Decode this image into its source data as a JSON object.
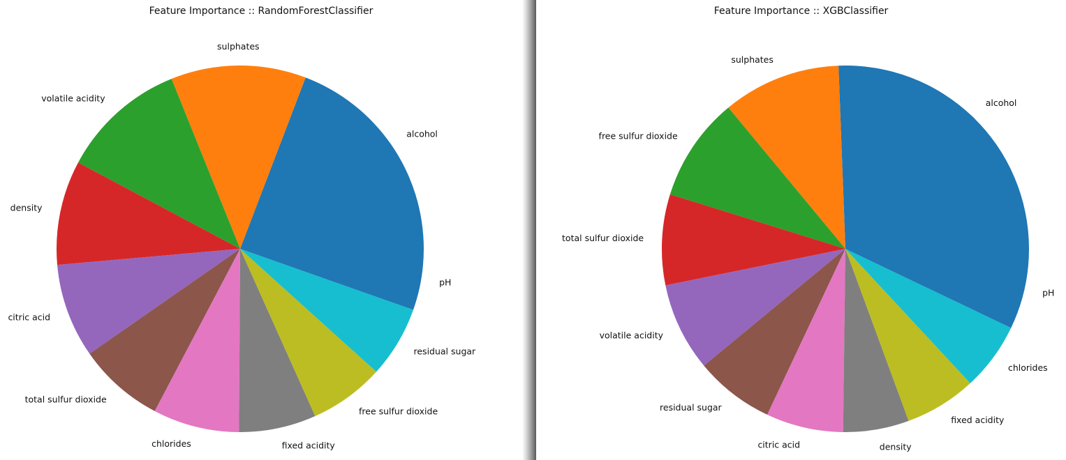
{
  "chart_data": [
    {
      "type": "pie",
      "title": "Feature Importance :: RandomForestClassifier",
      "start_angle_deg": 0,
      "direction": "counterclockwise",
      "categories": [
        "alcohol",
        "sulphates",
        "volatile acidity",
        "density",
        "citric acid",
        "total sulfur dioxide",
        "chlorides",
        "fixed acidity",
        "free sulfur dioxide",
        "residual sugar",
        "pH"
      ],
      "values": [
        0.192,
        0.119,
        0.111,
        0.092,
        0.083,
        0.076,
        0.076,
        0.068,
        0.066,
        0.063,
        0.054
      ],
      "colors": [
        "#1f77b4",
        "#ff7f0e",
        "#2ca02c",
        "#d62728",
        "#9467bd",
        "#8c564b",
        "#e377c2",
        "#7f7f7f",
        "#bcbd22",
        "#17becf",
        "#1f77b4"
      ]
    },
    {
      "type": "pie",
      "title": "Feature Importance :: XGBClassifier",
      "start_angle_deg": 0,
      "direction": "counterclockwise",
      "categories": [
        "alcohol",
        "sulphates",
        "free sulfur dioxide",
        "total sulfur dioxide",
        "volatile acidity",
        "residual sugar",
        "citric acid",
        "density",
        "fixed acidity",
        "chlorides",
        "pH"
      ],
      "values": [
        0.256,
        0.104,
        0.092,
        0.08,
        0.078,
        0.07,
        0.068,
        0.058,
        0.063,
        0.06,
        0.071
      ],
      "colors": [
        "#1f77b4",
        "#ff7f0e",
        "#2ca02c",
        "#d62728",
        "#9467bd",
        "#8c564b",
        "#e377c2",
        "#7f7f7f",
        "#bcbd22",
        "#17becf",
        "#1f77b4"
      ]
    }
  ]
}
